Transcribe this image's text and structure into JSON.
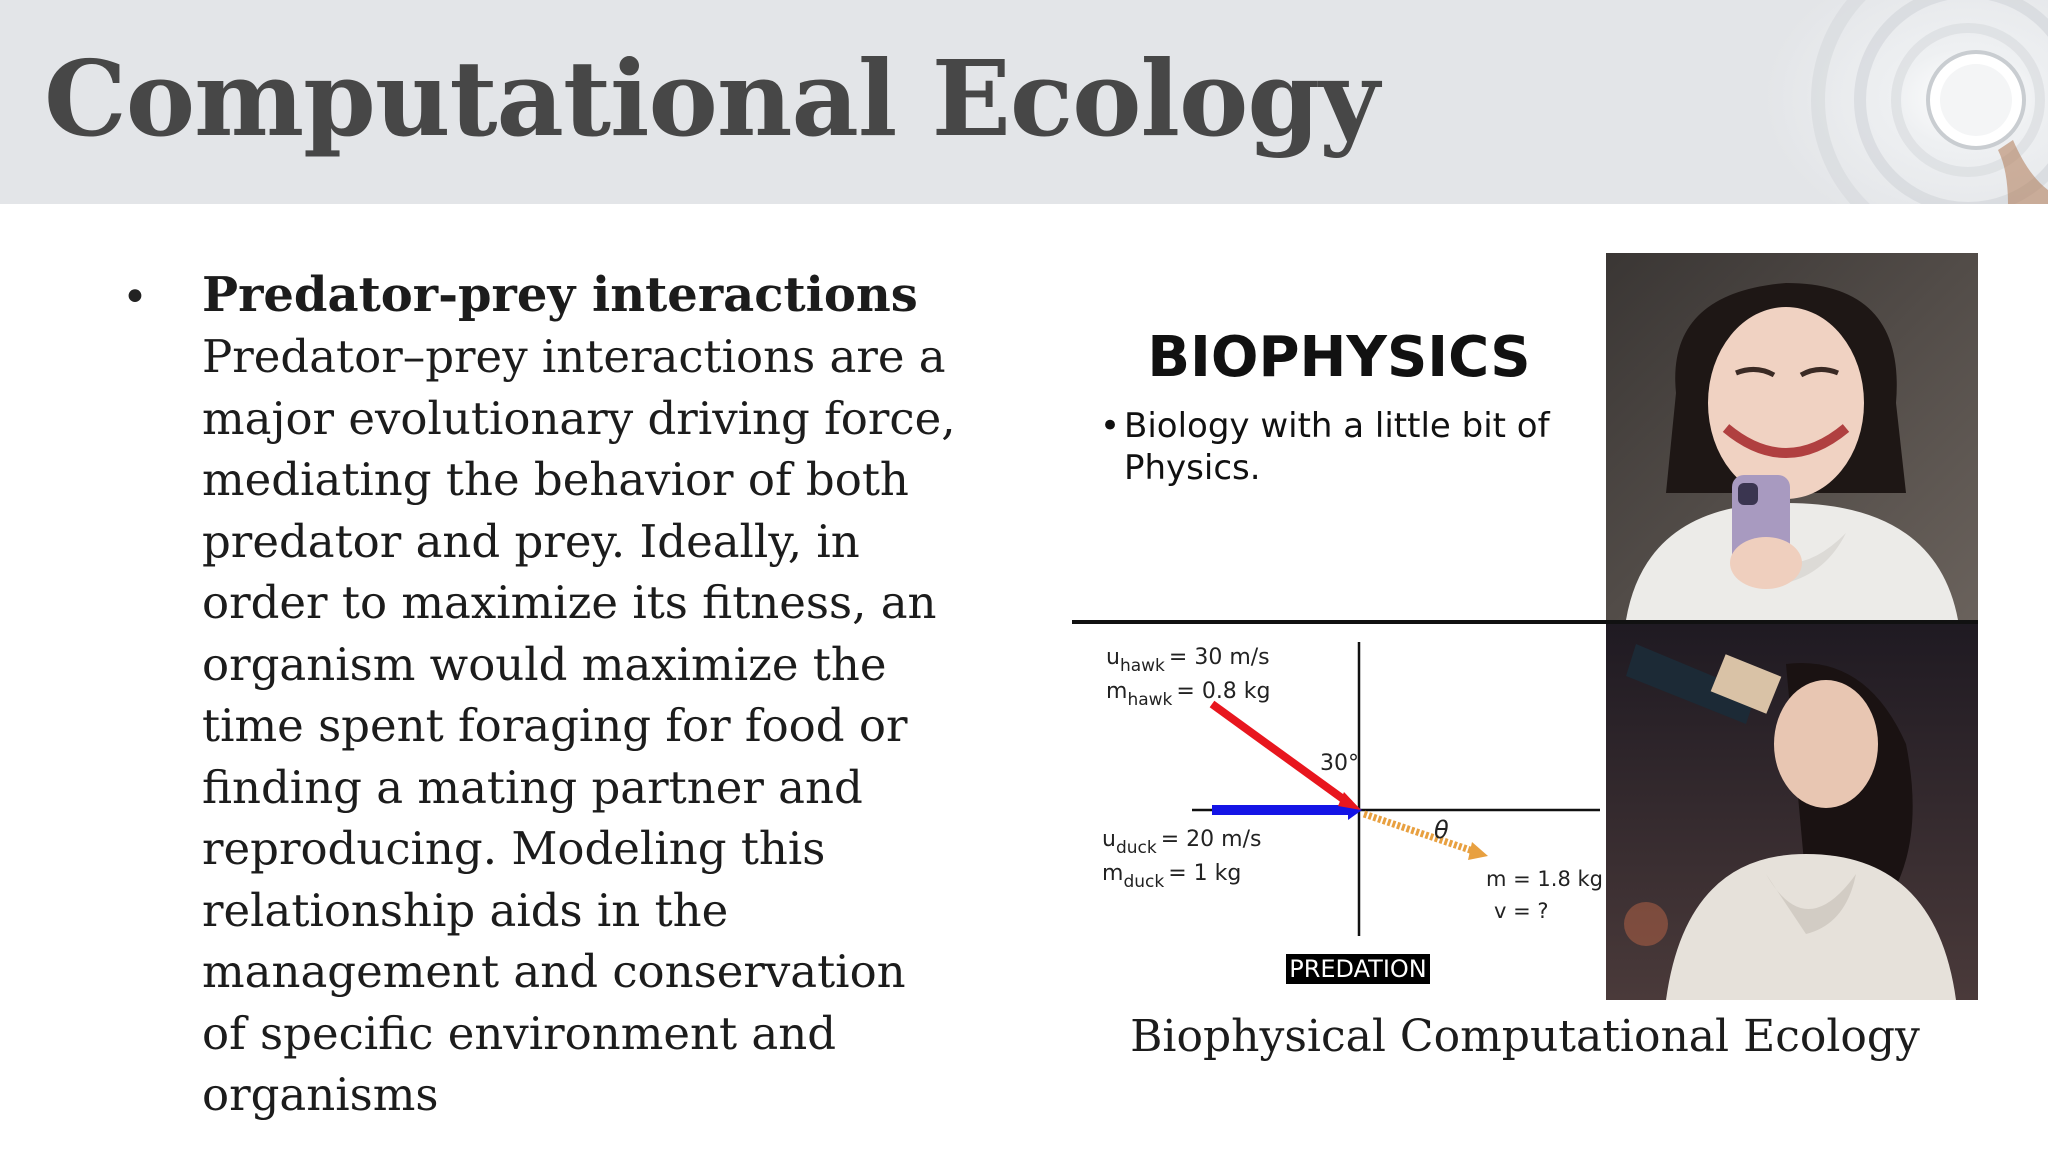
{
  "header": {
    "title": "Computational Ecology"
  },
  "bullet": {
    "heading": "Predator-prey interactions",
    "lines": [
      "Predator–prey interactions are a",
      "major evolutionary driving force,",
      "mediating the behavior of both",
      "predator and prey. Ideally, in",
      "order to maximize its fitness, an",
      "organism would maximize the",
      "time spent foraging for food or",
      "finding a mating partner and",
      "reproducing. Modeling this",
      "relationship aids in the",
      "management and conservation",
      "of specific environment and",
      "organisms"
    ]
  },
  "meme": {
    "biophysics_title": "BIOPHYSICS",
    "biophysics_bullet_line1": "Biology with a little bit of",
    "biophysics_bullet_line2": "Physics.",
    "diagram": {
      "hawk_speed_label": "u",
      "hawk_speed_sub": "hawk",
      "hawk_speed_value": "= 30 m/s",
      "hawk_mass_label": "m",
      "hawk_mass_sub": "hawk",
      "hawk_mass_value": "= 0.8 kg",
      "angle_label": "30°",
      "theta_label": "θ",
      "duck_speed_label": "u",
      "duck_speed_sub": "duck",
      "duck_speed_value": "= 20 m/s",
      "duck_mass_label": "m",
      "duck_mass_sub": "duck",
      "duck_mass_value": "= 1 kg",
      "result_mass": "m = 1.8 kg",
      "result_velocity": "v = ?",
      "tag": "PREDATION",
      "colors": {
        "hawk_arrow": "#e8161e",
        "duck_arrow": "#1414e6",
        "result_arrow": "#e8a040"
      }
    }
  },
  "caption": "Biophysical Computational Ecology"
}
